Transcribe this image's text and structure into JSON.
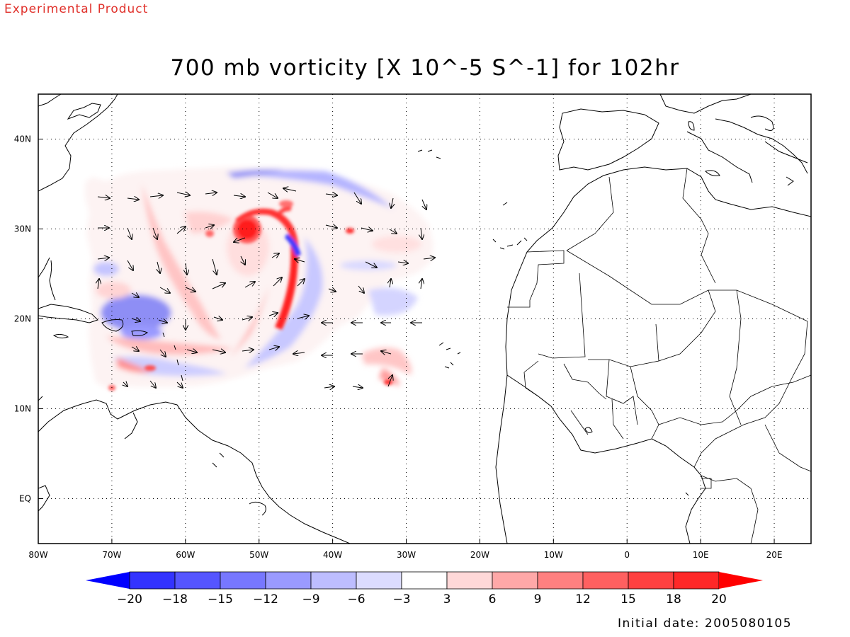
{
  "header": {
    "tag": "Experimental Product",
    "title": "700 mb vorticity [X 10^-5 S^-1] for 102hr"
  },
  "axes": {
    "lon_range": [
      -80,
      25
    ],
    "lat_range": [
      -5,
      45
    ],
    "lon_ticks": [
      {
        "value": -80,
        "label": "80W"
      },
      {
        "value": -70,
        "label": "70W"
      },
      {
        "value": -60,
        "label": "60W"
      },
      {
        "value": -50,
        "label": "50W"
      },
      {
        "value": -40,
        "label": "40W"
      },
      {
        "value": -30,
        "label": "30W"
      },
      {
        "value": -20,
        "label": "20W"
      },
      {
        "value": -10,
        "label": "10W"
      },
      {
        "value": 0,
        "label": "0"
      },
      {
        "value": 10,
        "label": "10E"
      },
      {
        "value": 20,
        "label": "20E"
      }
    ],
    "lat_ticks": [
      {
        "value": 40,
        "label": "40N"
      },
      {
        "value": 30,
        "label": "30N"
      },
      {
        "value": 20,
        "label": "20N"
      },
      {
        "value": 10,
        "label": "10N"
      },
      {
        "value": 0,
        "label": "EQ"
      }
    ],
    "grid": "dotted"
  },
  "colorbar": {
    "labels": [
      "-20",
      "-18",
      "-15",
      "-12",
      "-9",
      "-6",
      "-3",
      "3",
      "6",
      "9",
      "12",
      "15",
      "18",
      "20"
    ],
    "colors": [
      "#0000ff",
      "#3333ff",
      "#5555ff",
      "#7777ff",
      "#9a9aff",
      "#bdbdff",
      "#dcdcff",
      "#ffffff",
      "#ffd8d8",
      "#ffa8a8",
      "#ff8080",
      "#ff6060",
      "#ff4040",
      "#ff2828",
      "#ff0000"
    ]
  },
  "vorticity_features": [
    {
      "name": "hurricane core",
      "lon": -51.5,
      "lat": 30,
      "sign": "positive",
      "value": 20
    },
    {
      "name": "anticyclonic region",
      "lon": -65,
      "lat": 20.5,
      "sign": "negative",
      "value": -12
    },
    {
      "name": "northern shear band",
      "lon": -45,
      "lat": 37,
      "sign": "negative",
      "value": -9
    },
    {
      "name": "eastern easterly wave",
      "lon": -32,
      "lat": 14.5,
      "sign": "positive",
      "value": 9
    }
  ],
  "footer": {
    "initial_date": "Initial date: 2005080105"
  }
}
